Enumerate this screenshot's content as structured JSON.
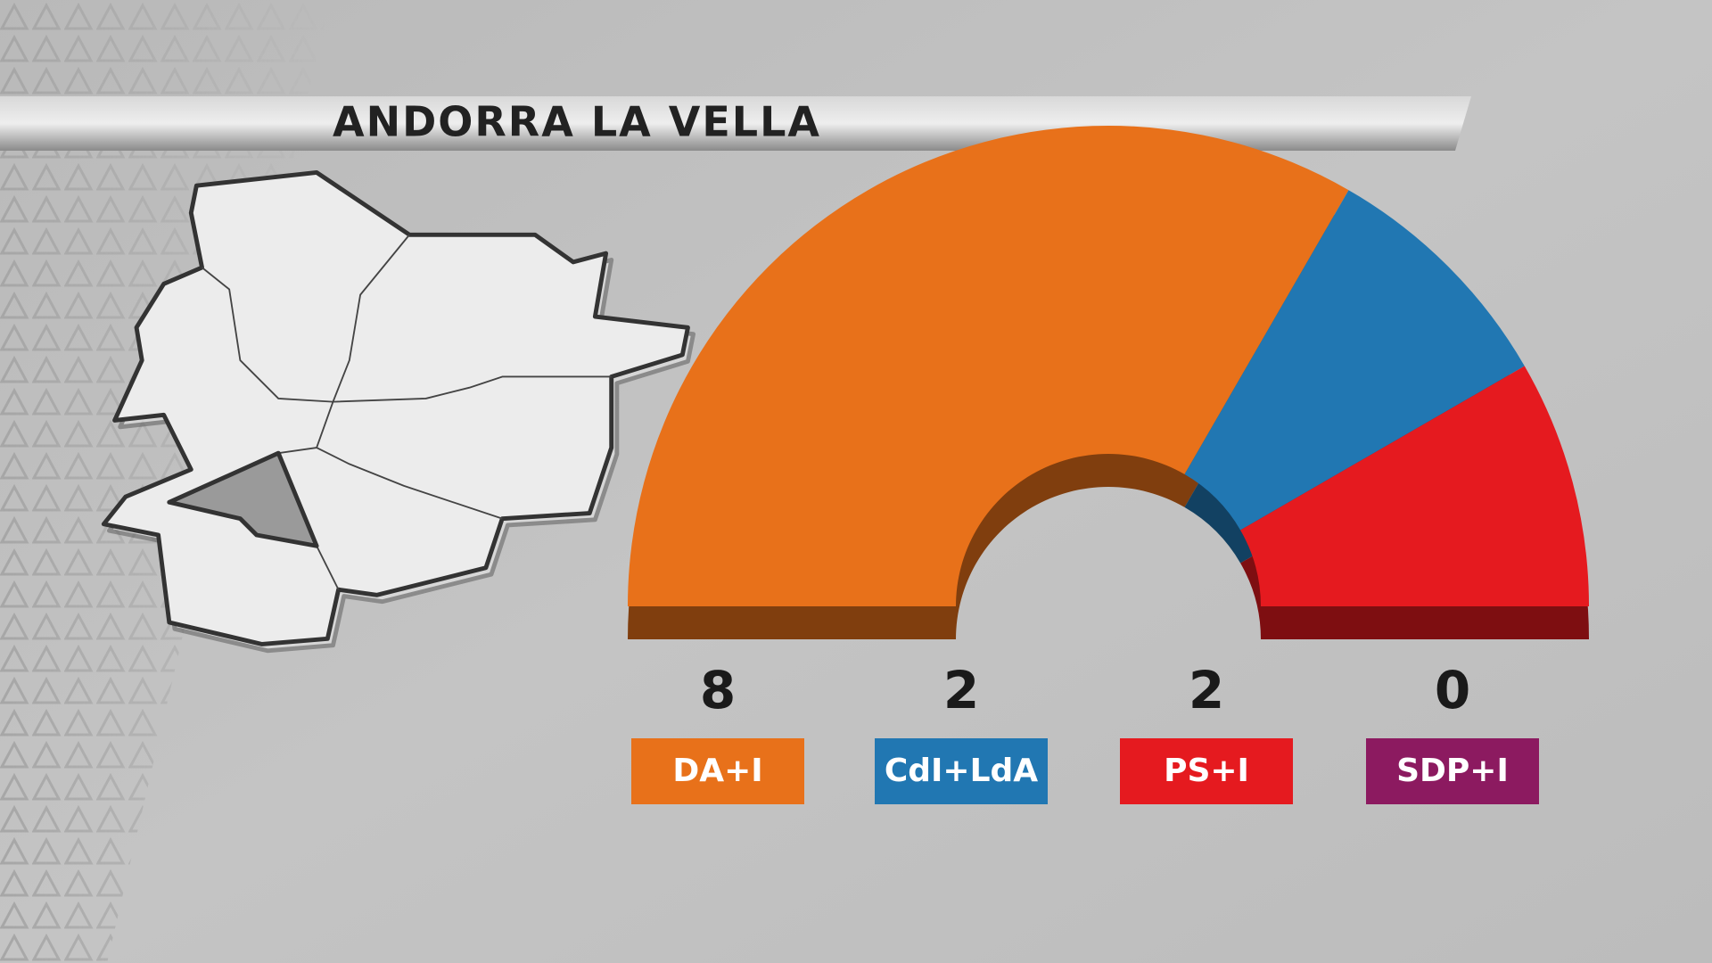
{
  "chart_data": {
    "type": "parliament",
    "title": "ANDORRA LA VELLA",
    "categories": [
      "DA+I",
      "CdI+LdA",
      "PS+I",
      "SDP+I"
    ],
    "values": [
      8,
      2,
      2,
      0
    ],
    "colors": [
      "#e8711a",
      "#2177b2",
      "#e51a1f",
      "#8c1a60"
    ]
  }
}
